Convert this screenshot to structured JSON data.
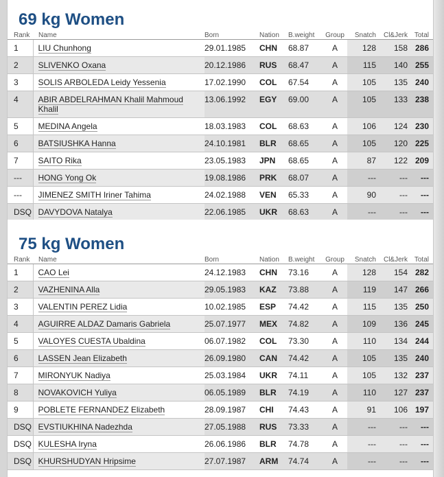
{
  "columns": {
    "rank": "Rank",
    "name": "Name",
    "born": "Born",
    "nation": "Nation",
    "bweight": "B.weight",
    "group": "Group",
    "snatch": "Snatch",
    "cleanjerk": "Cl&Jerk",
    "total": "Total"
  },
  "sections": [
    {
      "title": "69 kg Women",
      "rows": [
        {
          "rank": "1",
          "name": "LIU Chunhong",
          "born": "29.01.1985",
          "nation": "CHN",
          "bweight": "68.87",
          "group": "A",
          "snatch": "128",
          "cj": "158",
          "total": "286"
        },
        {
          "rank": "2",
          "name": "SLIVENKO Oxana",
          "born": "20.12.1986",
          "nation": "RUS",
          "bweight": "68.47",
          "group": "A",
          "snatch": "115",
          "cj": "140",
          "total": "255"
        },
        {
          "rank": "3",
          "name": "SOLIS ARBOLEDA Leidy Yessenia",
          "born": "17.02.1990",
          "nation": "COL",
          "bweight": "67.54",
          "group": "A",
          "snatch": "105",
          "cj": "135",
          "total": "240"
        },
        {
          "rank": "4",
          "name": "ABIR ABDELRAHMAN Khalil Mahmoud Khalil",
          "born": "13.06.1992",
          "nation": "EGY",
          "bweight": "69.00",
          "group": "A",
          "snatch": "105",
          "cj": "133",
          "total": "238"
        },
        {
          "rank": "5",
          "name": "MEDINA Angela",
          "born": "18.03.1983",
          "nation": "COL",
          "bweight": "68.63",
          "group": "A",
          "snatch": "106",
          "cj": "124",
          "total": "230"
        },
        {
          "rank": "6",
          "name": "BATSIUSHKA Hanna",
          "born": "24.10.1981",
          "nation": "BLR",
          "bweight": "68.65",
          "group": "A",
          "snatch": "105",
          "cj": "120",
          "total": "225"
        },
        {
          "rank": "7",
          "name": "SAITO Rika",
          "born": "23.05.1983",
          "nation": "JPN",
          "bweight": "68.65",
          "group": "A",
          "snatch": "87",
          "cj": "122",
          "total": "209"
        },
        {
          "rank": "---",
          "name": "HONG Yong Ok",
          "born": "19.08.1986",
          "nation": "PRK",
          "bweight": "68.07",
          "group": "A",
          "snatch": "---",
          "cj": "---",
          "total": "---"
        },
        {
          "rank": "---",
          "name": "JIMENEZ SMITH Iriner Tahima",
          "born": "24.02.1988",
          "nation": "VEN",
          "bweight": "65.33",
          "group": "A",
          "snatch": "90",
          "cj": "---",
          "total": "---"
        },
        {
          "rank": "DSQ",
          "name": "DAVYDOVA Natalya",
          "born": "22.06.1985",
          "nation": "UKR",
          "bweight": "68.63",
          "group": "A",
          "snatch": "---",
          "cj": "---",
          "total": "---"
        }
      ]
    },
    {
      "title": "75 kg Women",
      "rows": [
        {
          "rank": "1",
          "name": "CAO Lei",
          "born": "24.12.1983",
          "nation": "CHN",
          "bweight": "73.16",
          "group": "A",
          "snatch": "128",
          "cj": "154",
          "total": "282"
        },
        {
          "rank": "2",
          "name": "VAZHENINA Alla",
          "born": "29.05.1983",
          "nation": "KAZ",
          "bweight": "73.88",
          "group": "A",
          "snatch": "119",
          "cj": "147",
          "total": "266"
        },
        {
          "rank": "3",
          "name": "VALENTIN PEREZ Lidia",
          "born": "10.02.1985",
          "nation": "ESP",
          "bweight": "74.42",
          "group": "A",
          "snatch": "115",
          "cj": "135",
          "total": "250"
        },
        {
          "rank": "4",
          "name": "AGUIRRE ALDAZ Damaris Gabriela",
          "born": "25.07.1977",
          "nation": "MEX",
          "bweight": "74.82",
          "group": "A",
          "snatch": "109",
          "cj": "136",
          "total": "245"
        },
        {
          "rank": "5",
          "name": "VALOYES CUESTA Ubaldina",
          "born": "06.07.1982",
          "nation": "COL",
          "bweight": "73.30",
          "group": "A",
          "snatch": "110",
          "cj": "134",
          "total": "244"
        },
        {
          "rank": "6",
          "name": "LASSEN Jean Elizabeth",
          "born": "26.09.1980",
          "nation": "CAN",
          "bweight": "74.42",
          "group": "A",
          "snatch": "105",
          "cj": "135",
          "total": "240"
        },
        {
          "rank": "7",
          "name": "MIRONYUK Nadiya",
          "born": "25.03.1984",
          "nation": "UKR",
          "bweight": "74.11",
          "group": "A",
          "snatch": "105",
          "cj": "132",
          "total": "237"
        },
        {
          "rank": "8",
          "name": "NOVAKOVICH Yuliya",
          "born": "06.05.1989",
          "nation": "BLR",
          "bweight": "74.19",
          "group": "A",
          "snatch": "110",
          "cj": "127",
          "total": "237"
        },
        {
          "rank": "9",
          "name": "POBLETE FERNANDEZ Elizabeth",
          "born": "28.09.1987",
          "nation": "CHI",
          "bweight": "74.43",
          "group": "A",
          "snatch": "91",
          "cj": "106",
          "total": "197"
        },
        {
          "rank": "DSQ",
          "name": "EVSTIUKHINA Nadezhda",
          "born": "27.05.1988",
          "nation": "RUS",
          "bweight": "73.33",
          "group": "A",
          "snatch": "---",
          "cj": "---",
          "total": "---"
        },
        {
          "rank": "DSQ",
          "name": "KULESHA Iryna",
          "born": "26.06.1986",
          "nation": "BLR",
          "bweight": "74.78",
          "group": "A",
          "snatch": "---",
          "cj": "---",
          "total": "---"
        },
        {
          "rank": "DSQ",
          "name": "KHURSHUDYAN Hripsime",
          "born": "27.07.1987",
          "nation": "ARM",
          "bweight": "74.74",
          "group": "A",
          "snatch": "---",
          "cj": "---",
          "total": "---"
        }
      ]
    }
  ]
}
